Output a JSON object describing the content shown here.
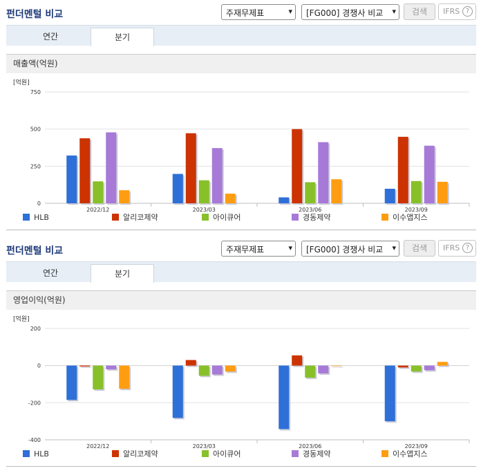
{
  "panels": [
    {
      "title": "펀더멘털 비교",
      "select1": "주재무제표",
      "select2": "[FG000] 경쟁사 비교",
      "search_label": "검색",
      "ifrs_label": "IFRS",
      "tabs": [
        "연간",
        "분기"
      ],
      "active_tab": "분기",
      "section_title": "매출액(억원)"
    },
    {
      "title": "펀더멘털 비교",
      "select1": "주재무제표",
      "select2": "[FG000] 경쟁사 비교",
      "search_label": "검색",
      "ifrs_label": "IFRS",
      "tabs": [
        "연간",
        "분기"
      ],
      "active_tab": "분기",
      "section_title": "영업이익(억원)"
    }
  ],
  "colors": {
    "HLB": "#2e6fd8",
    "알리코제약": "#cc3300",
    "아이큐어": "#88c02a",
    "경동제약": "#a77ad8",
    "이수앱지스": "#ff9d12"
  },
  "chart_data": [
    {
      "type": "bar",
      "unit_label": "[억원]",
      "categories": [
        "2022/12",
        "2023/03",
        "2023/06",
        "2023/09"
      ],
      "ylim": [
        0,
        750
      ],
      "yticks": [
        0,
        250,
        500,
        750
      ],
      "grid": true,
      "legend_position": "bottom",
      "series": [
        {
          "name": "HLB",
          "values": [
            322,
            198,
            40,
            98
          ]
        },
        {
          "name": "알리코제약",
          "values": [
            438,
            472,
            500,
            448
          ]
        },
        {
          "name": "아이큐어",
          "values": [
            148,
            155,
            142,
            150
          ]
        },
        {
          "name": "경동제약",
          "values": [
            478,
            372,
            412,
            388
          ]
        },
        {
          "name": "이수앱지스",
          "values": [
            88,
            65,
            162,
            145
          ]
        }
      ]
    },
    {
      "type": "bar",
      "unit_label": "[억원]",
      "categories": [
        "2022/12",
        "2023/03",
        "2023/06",
        "2023/09"
      ],
      "ylim": [
        -400,
        200
      ],
      "yticks": [
        -400,
        -200,
        0,
        200
      ],
      "grid": true,
      "legend_position": "bottom",
      "series": [
        {
          "name": "HLB",
          "values": [
            -185,
            -282,
            -342,
            -300
          ]
        },
        {
          "name": "알리코제약",
          "values": [
            -5,
            30,
            55,
            -10
          ]
        },
        {
          "name": "아이큐어",
          "values": [
            -128,
            -55,
            -65,
            -32
          ]
        },
        {
          "name": "경동제약",
          "values": [
            -20,
            -48,
            -42,
            -25
          ]
        },
        {
          "name": "이수앱지스",
          "values": [
            -125,
            -32,
            0,
            20
          ]
        }
      ]
    }
  ]
}
